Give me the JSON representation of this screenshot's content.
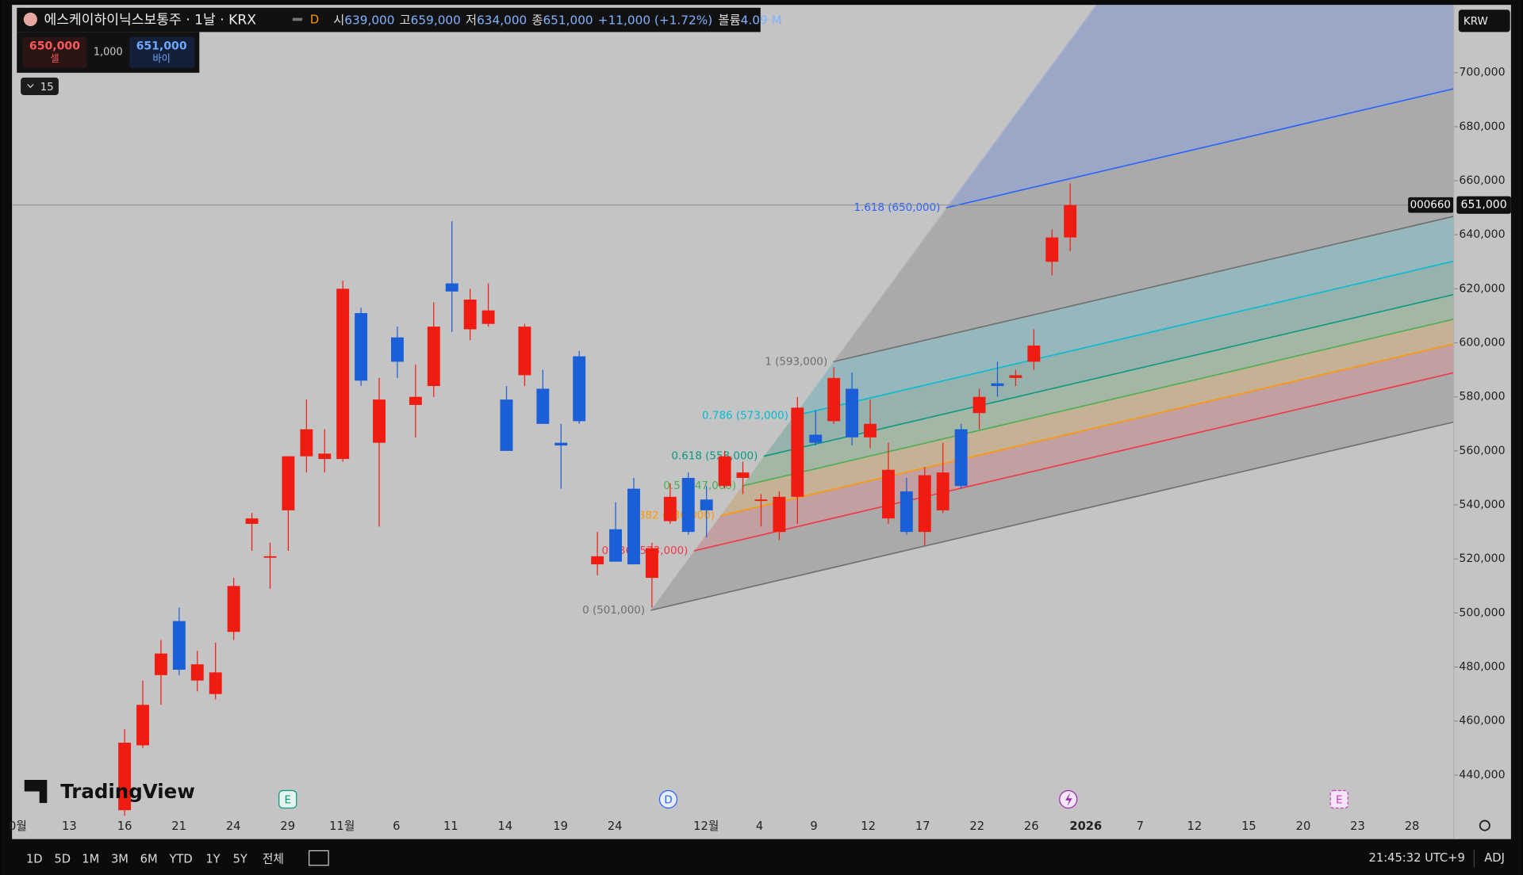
{
  "header": {
    "symbol": "에스케이하이닉스보통주 · 1날 · KRX",
    "interval_badge": "D",
    "open_label": "시",
    "open": "639,000",
    "high_label": "고",
    "high": "659,000",
    "low_label": "저",
    "low": "634,000",
    "close_label": "종",
    "close": "651,000",
    "change": "+11,000 (+1.72%)",
    "volume_label": "볼륨",
    "volume": "4.09 M"
  },
  "trade": {
    "sell_price": "650,000",
    "sell": "셀",
    "spread": "1,000",
    "buy_price": "651,000",
    "buy": "바이"
  },
  "indicators_count": "15",
  "currency": "KRW",
  "price_tag": {
    "symbol": "000660",
    "price": "651,000"
  },
  "watermark": "TradingView",
  "events": [
    "E",
    "D",
    "E"
  ],
  "chart_data": {
    "type": "candlestick",
    "up_color": "#f01c12",
    "down_color": "#1a5fd8",
    "open": [
      427000,
      451000,
      477000,
      497000,
      475000,
      470000,
      493000,
      533000,
      521000,
      538000,
      558000,
      557000,
      557000,
      611000,
      563000,
      602000,
      577000,
      584000,
      622000,
      605000,
      607000,
      579000,
      588000,
      583000,
      563000,
      595000,
      518000,
      531000,
      546000,
      513000,
      534000,
      550000,
      542000,
      547000,
      550000,
      542000,
      530000,
      543000,
      566000,
      571000,
      583000,
      565000,
      535000,
      545000,
      530000,
      538000,
      568000,
      574000,
      585000,
      587000,
      593000,
      630000,
      639000
    ],
    "high": [
      457000,
      475000,
      490000,
      502000,
      486000,
      489000,
      513000,
      537000,
      526000,
      558000,
      579000,
      568000,
      623000,
      613000,
      587000,
      606000,
      592000,
      615000,
      645000,
      620000,
      622000,
      584000,
      607000,
      590000,
      570000,
      597000,
      530000,
      541000,
      550000,
      526000,
      548000,
      552000,
      547000,
      560000,
      556000,
      544000,
      545000,
      580000,
      575000,
      591000,
      589000,
      579000,
      563000,
      550000,
      554000,
      563000,
      570000,
      583000,
      593000,
      590000,
      605000,
      642000,
      659000
    ],
    "low": [
      425000,
      450000,
      466000,
      477000,
      471000,
      468000,
      490000,
      523000,
      509000,
      523000,
      552000,
      552000,
      556000,
      584000,
      532000,
      587000,
      565000,
      580000,
      604000,
      601000,
      606000,
      560000,
      584000,
      570000,
      546000,
      570000,
      514000,
      519000,
      518000,
      502000,
      533000,
      529000,
      528000,
      546000,
      544000,
      532000,
      527000,
      533000,
      562000,
      570000,
      562000,
      561000,
      533000,
      529000,
      525000,
      537000,
      546000,
      568000,
      580000,
      584000,
      590000,
      625000,
      634000
    ],
    "close": [
      452000,
      466000,
      485000,
      479000,
      481000,
      478000,
      510000,
      535000,
      521000,
      558000,
      568000,
      559000,
      620000,
      586000,
      579000,
      593000,
      580000,
      606000,
      619000,
      616000,
      612000,
      560000,
      606000,
      570000,
      562000,
      571000,
      521000,
      519000,
      518000,
      524000,
      543000,
      530000,
      538000,
      558000,
      552000,
      542000,
      543000,
      576000,
      563000,
      587000,
      565000,
      570000,
      553000,
      530000,
      551000,
      552000,
      547000,
      580000,
      584000,
      588000,
      599000,
      639000,
      651000
    ],
    "ylim": [
      416300,
      725100
    ],
    "yticks": [
      {
        "value": 440000,
        "label": "440,000"
      },
      {
        "value": 460000,
        "label": "460,000"
      },
      {
        "value": 480000,
        "label": "480,000"
      },
      {
        "value": 500000,
        "label": "500,000"
      },
      {
        "value": 520000,
        "label": "520,000"
      },
      {
        "value": 540000,
        "label": "540,000"
      },
      {
        "value": 560000,
        "label": "560,000"
      },
      {
        "value": 580000,
        "label": "580,000"
      },
      {
        "value": 600000,
        "label": "600,000"
      },
      {
        "value": 620000,
        "label": "620,000"
      },
      {
        "value": 640000,
        "label": "640,000"
      },
      {
        "value": 660000,
        "label": "660,000"
      },
      {
        "value": 680000,
        "label": "680,000"
      },
      {
        "value": 700000,
        "label": "700,000"
      }
    ],
    "xticks": [
      "0월",
      "13",
      "16",
      "21",
      "24",
      "29",
      "11월",
      "6",
      "11",
      "14",
      "19",
      "24",
      "12월",
      "4",
      "9",
      "12",
      "17",
      "22",
      "26",
      "2026",
      "7",
      "12",
      "15",
      "20",
      "23",
      "28"
    ],
    "fib_levels": [
      {
        "level": 0,
        "price": 501000,
        "label": "0 (501,000)",
        "color": "#6e6e6e"
      },
      {
        "level": 0.236,
        "price": 523000,
        "label": "0.236 (523,000)",
        "color": "#f23645"
      },
      {
        "level": 0.382,
        "price": 536000,
        "label": "0.382 (536,000)",
        "color": "#ff9800"
      },
      {
        "level": 0.5,
        "price": 547000,
        "label": "0.5 (547,000)",
        "color": "#4caf50"
      },
      {
        "level": 0.618,
        "price": 558000,
        "label": "0.618 (558,000)",
        "color": "#089981"
      },
      {
        "level": 0.786,
        "price": 573000,
        "label": "0.786 (573,000)",
        "color": "#00bcd4"
      },
      {
        "level": 1,
        "price": 593000,
        "label": "1 (593,000)",
        "color": "#6e6e6e"
      },
      {
        "level": 1.618,
        "price": 650000,
        "label": "1.618 (650,000)",
        "color": "#2962ff"
      }
    ]
  },
  "footer": {
    "ranges": [
      "1D",
      "5D",
      "1M",
      "3M",
      "6M",
      "YTD",
      "1Y",
      "5Y",
      "전체"
    ],
    "clock": "21:45:32 UTC+9",
    "adj": "ADJ"
  }
}
